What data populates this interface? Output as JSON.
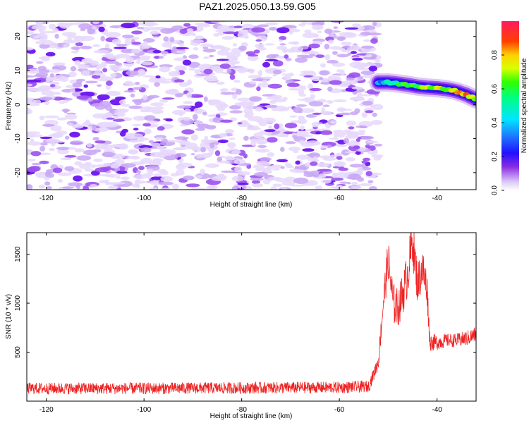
{
  "title": "PAZ1.2025.050.13.59.G05",
  "chart_data": [
    {
      "type": "heatmap",
      "name": "spectrogram",
      "xlabel": "Height of straight line (km)",
      "ylabel": "Frequency (Hz)",
      "xlim": [
        -124,
        -32
      ],
      "ylim": [
        -25,
        24.5
      ],
      "xticks": [
        -120,
        -100,
        -80,
        -60,
        -40
      ],
      "yticks": [
        -20,
        -10,
        0,
        10,
        20
      ],
      "noise_region_x": [
        -124,
        -52
      ],
      "signal_trace": {
        "x": [
          -52,
          -50,
          -48,
          -46,
          -44,
          -42,
          -40,
          -38,
          -36,
          -34,
          -32
        ],
        "frequency": [
          6.5,
          6.5,
          6.2,
          5.8,
          5.3,
          5.0,
          4.8,
          4.5,
          3.9,
          2.9,
          1.5
        ],
        "amplitude": [
          0.35,
          0.45,
          0.55,
          0.6,
          0.62,
          0.68,
          0.72,
          0.7,
          0.75,
          0.8,
          0.6
        ]
      },
      "colorbar": {
        "label": "Normalized spectral amplitude",
        "range": [
          0.0,
          0.98
        ],
        "ticks": [
          0.0,
          0.2,
          0.4,
          0.6,
          0.8
        ]
      }
    },
    {
      "type": "line",
      "name": "snr",
      "xlabel": "Height of straight line (km)",
      "ylabel": "SNR (10 * v/v)",
      "xlim": [
        -124,
        -32
      ],
      "ylim": [
        0,
        1720
      ],
      "xticks": [
        -120,
        -100,
        -80,
        -60,
        -40
      ],
      "yticks": [
        500,
        1000,
        1500
      ],
      "series": [
        {
          "name": "SNR",
          "color": "#ee2222",
          "envelope_x": [
            -124,
            -100,
            -80,
            -60,
            -54,
            -52,
            -51,
            -50,
            -49,
            -48,
            -47,
            -46,
            -45,
            -44,
            -43,
            -42,
            -41.5,
            -40,
            -38,
            -36,
            -34,
            -32
          ],
          "envelope_mean": [
            130,
            130,
            135,
            140,
            150,
            400,
            1000,
            1450,
            1000,
            950,
            1100,
            1300,
            1650,
            1200,
            1350,
            1150,
            600,
            600,
            620,
            620,
            640,
            680
          ],
          "envelope_spread": [
            60,
            60,
            60,
            60,
            60,
            80,
            160,
            220,
            220,
            200,
            220,
            240,
            250,
            220,
            220,
            200,
            90,
            80,
            70,
            70,
            80,
            80
          ]
        }
      ]
    }
  ]
}
